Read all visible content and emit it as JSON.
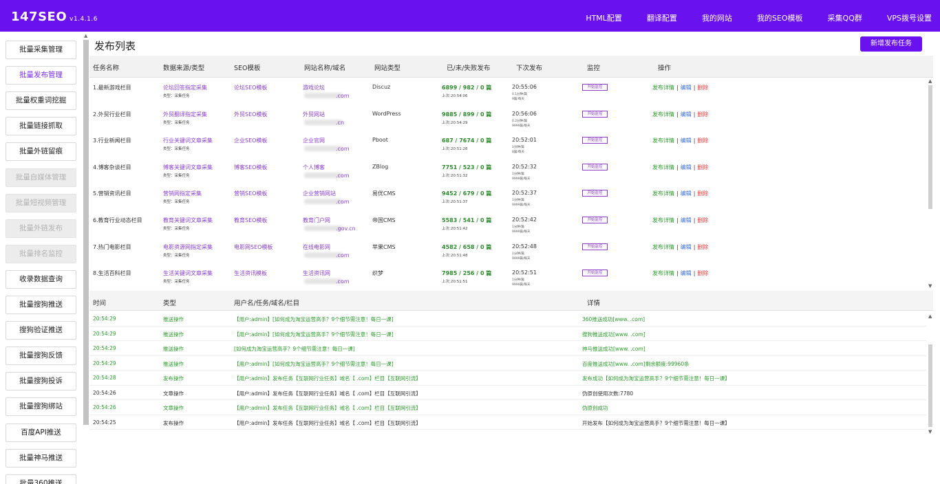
{
  "app": {
    "name": "147SEO",
    "version": "v1.4.1.6"
  },
  "nav": [
    "HTML配置",
    "翻译配置",
    "我的网站",
    "我的SEO模板",
    "采集QQ群",
    "VPS拨号设置"
  ],
  "sidebar": [
    {
      "label": "批量采集管理",
      "state": "normal"
    },
    {
      "label": "批量发布管理",
      "state": "active"
    },
    {
      "label": "批量权重词挖掘",
      "state": "normal"
    },
    {
      "label": "批量链接抓取",
      "state": "normal"
    },
    {
      "label": "批量外链留痕",
      "state": "normal"
    },
    {
      "label": "批量自媒体管理",
      "state": "disabled"
    },
    {
      "label": "批量短视频管理",
      "state": "disabled"
    },
    {
      "label": "批量外链发布",
      "state": "disabled"
    },
    {
      "label": "批量排名监控",
      "state": "disabled"
    },
    {
      "label": "收录数据查询",
      "state": "normal"
    },
    {
      "label": "批量搜狗推送",
      "state": "normal"
    },
    {
      "label": "搜狗验证推送",
      "state": "normal"
    },
    {
      "label": "批量搜狗反馈",
      "state": "normal"
    },
    {
      "label": "批量搜狗投诉",
      "state": "normal"
    },
    {
      "label": "批量搜狗绑站",
      "state": "normal"
    },
    {
      "label": "百度API推送",
      "state": "normal"
    },
    {
      "label": "批量神马推送",
      "state": "normal"
    },
    {
      "label": "批量360推送",
      "state": "normal"
    }
  ],
  "page": {
    "title": "发布列表",
    "add_button": "新增发布任务"
  },
  "table": {
    "headers": [
      "任务名称",
      "数据来源/类型",
      "SEO模板",
      "网站名称/域名",
      "网站类型",
      "已/未/失败发布",
      "下次发布",
      "监控",
      "操作"
    ],
    "monitor_label": "开始监控",
    "actions": {
      "detail": "发布详情",
      "edit": "编辑",
      "delete": "删除",
      "sep": "|"
    },
    "rows": [
      {
        "name": "1.最新游戏栏目",
        "source": "论坛回答指定采集",
        "source_type": "类型：采集任务",
        "template": "论坛SEO模板",
        "site": "游戏论坛",
        "domain": ".com",
        "site_type": "Discuz",
        "counts": "6899 / 982 / 0 篇",
        "last": "上次:20:54:06",
        "next": "20:55:06",
        "next_a": "0.1分钟/篇",
        "next_b": "9篇/每天"
      },
      {
        "name": "2.外贸行业栏目",
        "source": "外贸翻译指定采集",
        "source_type": "类型：采集任务",
        "template": "外贸SEO模板",
        "site": "外贸网站",
        "domain": ".cn",
        "site_type": "WordPress",
        "counts": "9885 / 899 / 0 篇",
        "last": "上次:20:54:29",
        "next": "20:56:06",
        "next_a": "0.2分钟/篇",
        "next_b": "9999篇/每天"
      },
      {
        "name": "3.行业新闻栏目",
        "source": "行业关键词文章采集",
        "source_type": "类型：采集任务",
        "template": "企业SEO模板",
        "site": "企业官网",
        "domain": ".com",
        "site_type": "Pboot",
        "counts": "687 / 7674 / 0 篇",
        "last": "上次:20:51:28",
        "next": "20:52:01",
        "next_a": "1分钟/篇",
        "next_b": "8篇/每天"
      },
      {
        "name": "4.博客杂谈栏目",
        "source": "博客关键词文章采集",
        "source_type": "类型：采集任务",
        "template": "博客SEO模板",
        "site": "个人博客",
        "domain": ".com",
        "site_type": "ZBlog",
        "counts": "7751 / 523 / 0 篇",
        "last": "上次:20:51:32",
        "next": "20:52:32",
        "next_a": "1分钟/篇",
        "next_b": "9999篇/每天"
      },
      {
        "name": "5.营销资讯栏目",
        "source": "营销网指定采集",
        "source_type": "类型：采集任务",
        "template": "营销SEO模板",
        "site": "企业营销网站",
        "domain": ".com",
        "site_type": "易优CMS",
        "counts": "9452 / 679 / 0 篇",
        "last": "上次:20:51:37",
        "next": "20:52:37",
        "next_a": "1分钟/篇",
        "next_b": "9999篇/每天"
      },
      {
        "name": "6.教育行业动态栏目",
        "source": "教育关键词文章采集",
        "source_type": "类型：采集任务",
        "template": "教育SEO模板",
        "site": "教育门户网",
        "domain": ".gov.cn",
        "site_type": "帝国CMS",
        "counts": "5583 / 541 / 0 篇",
        "last": "上次:20:51:42",
        "next": "20:52:42",
        "next_a": "1分钟/篇",
        "next_b": "9999篇/每天"
      },
      {
        "name": "7.热门电影栏目",
        "source": "电影资源网指定采集",
        "source_type": "类型：采集任务",
        "template": "电影网SEO模板",
        "site": "在线电影网",
        "domain": ".com",
        "site_type": "苹果CMS",
        "counts": "4582 / 658 / 0 篇",
        "last": "上次:20:51:48",
        "next": "20:52:48",
        "next_a": "1分钟/篇",
        "next_b": "9999篇/每天"
      },
      {
        "name": "8.生活百科栏目",
        "source": "生活关键词文章采集",
        "source_type": "类型：采集任务",
        "template": "生活资讯模板",
        "site": "生活资讯网",
        "domain": ".com",
        "site_type": "织梦",
        "counts": "7985 / 256 / 0 篇",
        "last": "上次:20:51:51",
        "next": "20:52:51",
        "next_a": "1分钟/篇",
        "next_b": "9999篇/每天"
      }
    ]
  },
  "log": {
    "headers": [
      "时间",
      "类型",
      "用户名/任务/域名/栏目",
      "详情"
    ],
    "rows": [
      {
        "time": "20:54:29",
        "type": "推送操作",
        "info": "【用户:admin】[如何成为淘宝运营高手？9个细节需注意！每日一课]",
        "detail": "360推送成功[www.           .com]",
        "color": "green"
      },
      {
        "time": "20:54:29",
        "type": "推送操作",
        "info": "【用户:admin】[如何成为淘宝运营高手？9个细节需注意！每日一课]",
        "detail": "搜狗推送成功[www.           .com]",
        "color": "green"
      },
      {
        "time": "20:54:29",
        "type": "推送操作",
        "info": "[如何成为淘宝运营高手？9个细节需注意！每日一课]",
        "detail": "神马推送成功[www.           .com]",
        "color": "green"
      },
      {
        "time": "20:54:29",
        "type": "推送操作",
        "info": "【用户:admin】[如何成为淘宝运营高手？9个细节需注意！每日一课]",
        "detail": "百度推送成功[www.           .com]剩余额度:99960条",
        "color": "green"
      },
      {
        "time": "20:54:28",
        "type": "发布操作",
        "info": "【用户:admin】发布任务【互联网行业任务】域名【           .com】栏目【互联网引流】",
        "detail": "发布成功【如何成为淘宝运营高手？9个细节需注意！每日一课】",
        "color": "green"
      },
      {
        "time": "20:54:26",
        "type": "文章操作",
        "info": "【用户:admin】发布任务【互联网行业任务】域名【           .com】栏目【互联网引流】",
        "detail": "伪原创使用次数:7780",
        "color": "dark"
      },
      {
        "time": "20:54:26",
        "type": "文章操作",
        "info": "【用户:admin】发布任务【互联网行业任务】域名【           .com】栏目【互联网引流】",
        "detail": "伪原创成功",
        "color": "green"
      },
      {
        "time": "20:54:25",
        "type": "发布操作",
        "info": "【用户:admin】发布任务【互联网行业任务】域名【           .com】栏目【互联网引流】",
        "detail": "开始发布【如何成为淘宝运营高手？9个细节需注意！每日一课】",
        "color": "dark"
      }
    ]
  }
}
